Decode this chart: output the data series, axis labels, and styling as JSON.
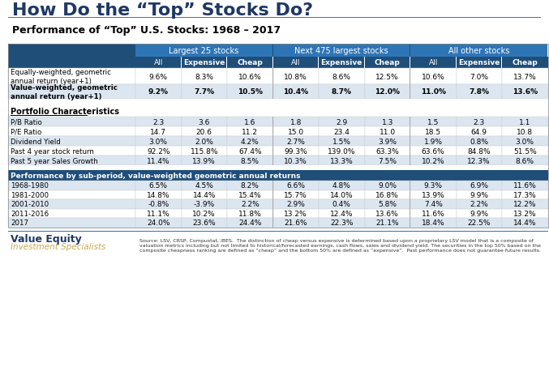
{
  "title": "How Do the “Top” Stocks Do?",
  "subtitle": "Performance of “Top” U.S. Stocks: 1968 – 2017",
  "header_bg": "#1f4e79",
  "header_fg": "#ffffff",
  "subheader_bg": "#2e75b6",
  "subheader_fg": "#ffffff",
  "alt_row_bg": "#dce6f1",
  "normal_row_bg": "#ffffff",
  "bold_row_bg": "#dce6f1",
  "section_header_bg": "#1f4e79",
  "section_header_fg": "#ffffff",
  "col_groups": [
    "Largest 25 stocks",
    "Next 475 largest stocks",
    "All other stocks"
  ],
  "col_subheaders": [
    "All",
    "Expensive",
    "Cheap"
  ],
  "row_labels_main": [
    "Equally-weighted, geometric\nannual return (year+1)",
    "Value-weighted, geometric\nannual return (year+1)"
  ],
  "row_data_main": [
    [
      "9.6%",
      "8.3%",
      "10.6%",
      "10.8%",
      "8.6%",
      "12.5%",
      "10.6%",
      "7.0%",
      "13.7%"
    ],
    [
      "9.2%",
      "7.7%",
      "10.5%",
      "10.4%",
      "8.7%",
      "12.0%",
      "11.0%",
      "7.8%",
      "13.6%"
    ]
  ],
  "row_bold_main": [
    false,
    true
  ],
  "portfolio_section": "Portfolio Characteristics",
  "row_labels_portfolio": [
    "P/B Ratio",
    "P/E Ratio",
    "Dividend Yield",
    "Past 4 year stock return",
    "Past 5 year Sales Growth"
  ],
  "row_data_portfolio": [
    [
      "2.3",
      "3.6",
      "1.6",
      "1.8",
      "2.9",
      "1.3",
      "1.5",
      "2.3",
      "1.1"
    ],
    [
      "14.7",
      "20.6",
      "11.2",
      "15.0",
      "23.4",
      "11.0",
      "18.5",
      "64.9",
      "10.8"
    ],
    [
      "3.0%",
      "2.0%",
      "4.2%",
      "2.7%",
      "1.5%",
      "3.9%",
      "1.9%",
      "0.8%",
      "3.0%"
    ],
    [
      "92.2%",
      "115.8%",
      "67.4%",
      "99.3%",
      "139.0%",
      "63.3%",
      "63.6%",
      "84.8%",
      "51.5%"
    ],
    [
      "11.4%",
      "13.9%",
      "8.5%",
      "10.3%",
      "13.3%",
      "7.5%",
      "10.2%",
      "12.3%",
      "8.6%"
    ]
  ],
  "subperiod_header": "Performance by sub-period, value-weighted geometric annual returns",
  "row_labels_subperiod": [
    "1968-1980",
    "1981-2000",
    "2001-2010",
    "2011-2016",
    "2017"
  ],
  "row_data_subperiod": [
    [
      "6.5%",
      "4.5%",
      "8.2%",
      "6.6%",
      "4.8%",
      "9.0%",
      "9.3%",
      "6.9%",
      "11.6%"
    ],
    [
      "14.8%",
      "14.4%",
      "15.4%",
      "15.7%",
      "14.0%",
      "16.8%",
      "13.9%",
      "9.9%",
      "17.3%"
    ],
    [
      "-0.8%",
      "-3.9%",
      "2.2%",
      "2.9%",
      "0.4%",
      "5.8%",
      "7.4%",
      "2.2%",
      "12.2%"
    ],
    [
      "11.1%",
      "10.2%",
      "11.8%",
      "13.2%",
      "12.4%",
      "13.6%",
      "11.6%",
      "9.9%",
      "13.2%"
    ],
    [
      "24.0%",
      "23.6%",
      "24.4%",
      "21.6%",
      "22.3%",
      "21.1%",
      "18.4%",
      "22.5%",
      "14.4%"
    ]
  ],
  "footer_left_title": "Value Equity",
  "footer_left_subtitle": "Investment Specialists",
  "footer_text": "Source: LSV, CRSP, Compustat, IBES.  The distinction of cheap versus expensive is determined based upon a proprietary LSV model that is a composite of valuation metrics including but not limited to historical/forecasted earnings, cash flows, sales and dividend yield. The securities in the top 50% based on the composite cheapness ranking are defined as “cheap” and the bottom 50% are defined as “expensive”.  Past performance does not guarantee future results.",
  "title_color": "#1f3864",
  "subtitle_color": "#000000",
  "footer_title_color": "#1f3864",
  "footer_subtitle_color": "#c8a951"
}
